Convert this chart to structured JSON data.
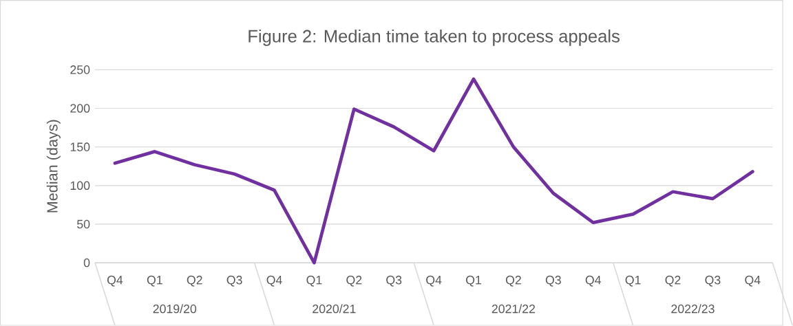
{
  "chart_data": {
    "type": "line",
    "title": "Figure 2: Median  time taken to process appeals",
    "ylabel": "Median (days)",
    "categories": [
      "Q4",
      "Q1",
      "Q2",
      "Q3",
      "Q4",
      "Q1",
      "Q2",
      "Q3",
      "Q4",
      "Q1",
      "Q2",
      "Q3",
      "Q4",
      "Q1",
      "Q2",
      "Q3",
      "Q4"
    ],
    "series": [
      {
        "color": "#7030a0",
        "values": [
          129,
          144,
          127,
          115,
          94,
          0,
          199,
          176,
          145,
          238,
          150,
          90,
          52,
          63,
          92,
          83,
          118
        ]
      }
    ],
    "ylim": [
      0,
      250
    ],
    "yticks": [
      0,
      50,
      100,
      150,
      200,
      250
    ],
    "grid": "y",
    "marker": "none",
    "line_style": "solid",
    "annotations": [
      "2019/20",
      "2020/21",
      "2021/22",
      "2022/23"
    ]
  }
}
